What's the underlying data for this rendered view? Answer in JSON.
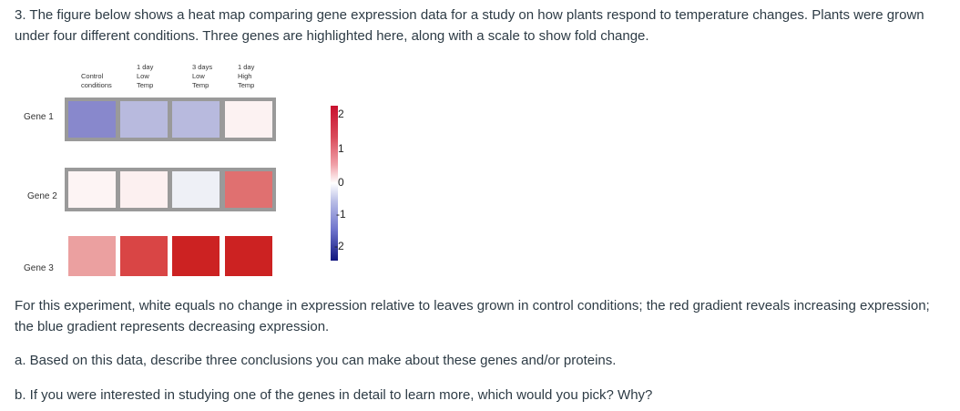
{
  "question": {
    "intro": "3. The figure below shows a heat map comparing gene expression data for a study on how plants respond to temperature changes. Plants were grown under four different conditions. Three genes are highlighted here, along with a scale to show fold change.",
    "figure_note": "For this experiment, white equals no change in expression relative to leaves grown in control conditions; the red gradient reveals increasing expression; the blue gradient represents decreasing expression.",
    "part_a": "a. Based on this data, describe three conclusions you can make about these genes and/or proteins.",
    "part_b": "b. If you were interested in studying one of the genes in detail to learn more, which would you pick? Why?"
  },
  "chart_data": {
    "type": "heatmap",
    "columns": [
      "Control\nconditions",
      "1 day\nLow\nTemp",
      "3 days\nLow\nTemp",
      "1 day\nHigh\nTemp"
    ],
    "rows": [
      "Gene 1",
      "Gene 2",
      "Gene 3"
    ],
    "values": [
      [
        -1.5,
        -0.8,
        -0.8,
        0.1
      ],
      [
        0.05,
        0.1,
        -0.2,
        1.6
      ],
      [
        0.9,
        1.8,
        2.2,
        2.2
      ]
    ],
    "scale": {
      "labels": [
        "2",
        "1",
        "0",
        "-1",
        "-2"
      ],
      "range": [
        -2,
        2
      ]
    }
  },
  "colors": {
    "cells": [
      [
        "#8888cc",
        "#b8bade",
        "#b8bade",
        "#fcf2f2"
      ],
      [
        "#fdf4f4",
        "#fcf0f0",
        "#eef0f6",
        "#e07070"
      ],
      [
        "#eba0a0",
        "#d94545",
        "#cc2222",
        "#cc2222"
      ]
    ]
  }
}
